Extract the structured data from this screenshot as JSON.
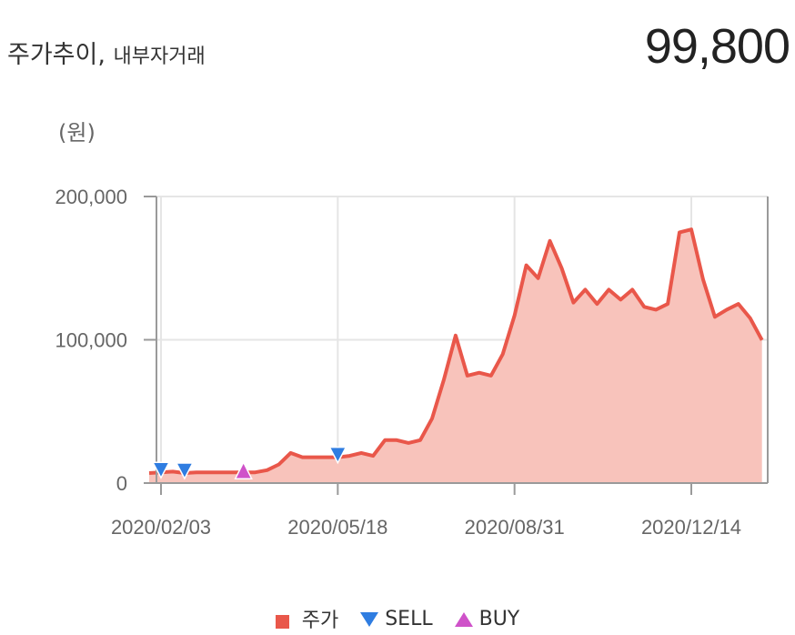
{
  "header": {
    "title": "주가추이,",
    "subtitle": "내부자거래",
    "price": "99,800"
  },
  "chart_data": {
    "type": "area",
    "unit_label": "(원)",
    "ylim": [
      0,
      200000
    ],
    "yticks": [
      0,
      100000,
      200000
    ],
    "ytick_labels": [
      "0",
      "100,000",
      "200,000"
    ],
    "xticks": [
      "2020-02-03",
      "2020-05-18",
      "2020-08-31",
      "2020-12-14"
    ],
    "xtick_labels": [
      "2020/02/03",
      "2020/05/18",
      "2020/08/31",
      "2020/12/14"
    ],
    "grid": true,
    "legend_position": "bottom",
    "colors": {
      "price": "#e9574a",
      "area": "#f8c3bb",
      "sell": "#2f7de1",
      "buy": "#cf52c9"
    },
    "series": [
      {
        "name": "주가",
        "points": [
          [
            "2020-01-27",
            7000
          ],
          [
            "2020-02-03",
            7500
          ],
          [
            "2020-02-10",
            8000
          ],
          [
            "2020-02-17",
            7000
          ],
          [
            "2020-02-24",
            7500
          ],
          [
            "2020-03-02",
            7500
          ],
          [
            "2020-03-09",
            7500
          ],
          [
            "2020-03-16",
            7500
          ],
          [
            "2020-03-23",
            7500
          ],
          [
            "2020-03-30",
            7500
          ],
          [
            "2020-04-06",
            9000
          ],
          [
            "2020-04-13",
            13000
          ],
          [
            "2020-04-20",
            21000
          ],
          [
            "2020-04-27",
            18000
          ],
          [
            "2020-05-04",
            18000
          ],
          [
            "2020-05-11",
            18000
          ],
          [
            "2020-05-18",
            18000
          ],
          [
            "2020-05-25",
            19000
          ],
          [
            "2020-06-01",
            21000
          ],
          [
            "2020-06-08",
            19000
          ],
          [
            "2020-06-15",
            30000
          ],
          [
            "2020-06-22",
            30000
          ],
          [
            "2020-06-29",
            28000
          ],
          [
            "2020-07-06",
            30000
          ],
          [
            "2020-07-13",
            45000
          ],
          [
            "2020-07-20",
            72000
          ],
          [
            "2020-07-27",
            103000
          ],
          [
            "2020-08-03",
            75000
          ],
          [
            "2020-08-10",
            77000
          ],
          [
            "2020-08-17",
            75000
          ],
          [
            "2020-08-24",
            90000
          ],
          [
            "2020-08-31",
            117000
          ],
          [
            "2020-09-07",
            152000
          ],
          [
            "2020-09-14",
            143000
          ],
          [
            "2020-09-21",
            169000
          ],
          [
            "2020-09-28",
            150000
          ],
          [
            "2020-10-05",
            126000
          ],
          [
            "2020-10-12",
            135000
          ],
          [
            "2020-10-19",
            125000
          ],
          [
            "2020-10-26",
            135000
          ],
          [
            "2020-11-02",
            128000
          ],
          [
            "2020-11-09",
            135000
          ],
          [
            "2020-11-16",
            123000
          ],
          [
            "2020-11-23",
            121000
          ],
          [
            "2020-11-30",
            125000
          ],
          [
            "2020-12-07",
            175000
          ],
          [
            "2020-12-14",
            177000
          ],
          [
            "2020-12-21",
            142000
          ],
          [
            "2020-12-28",
            116000
          ],
          [
            "2021-01-04",
            121000
          ],
          [
            "2021-01-11",
            125000
          ],
          [
            "2021-01-18",
            115000
          ],
          [
            "2021-01-25",
            99800
          ]
        ]
      },
      {
        "name": "SELL",
        "marker": "triangle-down",
        "points": [
          [
            "2020-02-03",
            7500
          ],
          [
            "2020-02-17",
            7000
          ],
          [
            "2020-05-18",
            18000
          ]
        ]
      },
      {
        "name": "BUY",
        "marker": "triangle-up",
        "points": [
          [
            "2020-03-23",
            7500
          ]
        ]
      }
    ]
  },
  "legend": [
    {
      "label": "주가",
      "marker": "square",
      "color": "#e9574a"
    },
    {
      "label": "SELL",
      "marker": "triangle-down",
      "color": "#2f7de1"
    },
    {
      "label": "BUY",
      "marker": "triangle-up",
      "color": "#cf52c9"
    }
  ]
}
